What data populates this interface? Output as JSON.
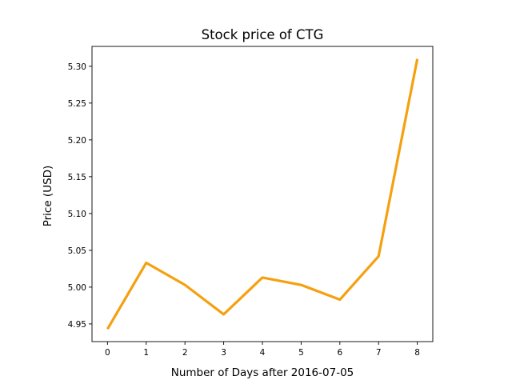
{
  "chart_data": {
    "type": "line",
    "title": "Stock price of CTG",
    "xlabel": "Number of Days after 2016-07-05",
    "ylabel": "Price (USD)",
    "x": [
      0,
      1,
      2,
      3,
      4,
      5,
      6,
      7,
      8
    ],
    "series": [
      {
        "values": [
          4.943,
          5.033,
          5.003,
          4.963,
          5.013,
          5.003,
          4.983,
          5.042,
          5.31
        ]
      }
    ],
    "xticks": [
      "0",
      "1",
      "2",
      "3",
      "4",
      "5",
      "6",
      "7",
      "8"
    ],
    "yticks": [
      "4.95",
      "5.00",
      "5.05",
      "5.10",
      "5.15",
      "5.20",
      "5.25",
      "5.30"
    ],
    "xlim": [
      -0.4,
      8.4
    ],
    "ylim": [
      4.926,
      5.327
    ],
    "grid": false,
    "colors": {
      "line": "#f5a00f",
      "axes": "#000000",
      "background": "#ffffff"
    }
  }
}
